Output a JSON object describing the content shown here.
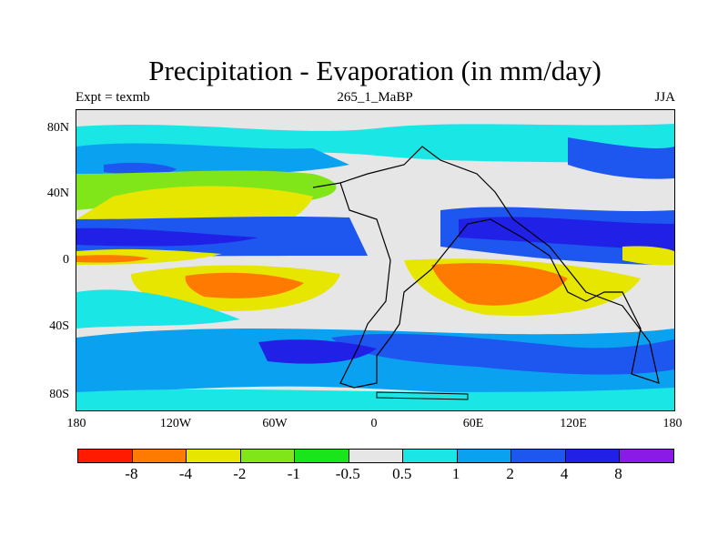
{
  "title": "Precipitation - Evaporation (in mm/day)",
  "subtitle_left": "Expt = texmb",
  "subtitle_center": "265_1_MaBP",
  "subtitle_right": "JJA",
  "y_ticks": [
    "80N",
    "40N",
    "0",
    "40S",
    "80S"
  ],
  "x_ticks": [
    "180",
    "120W",
    "60W",
    "0",
    "60E",
    "120E",
    "180"
  ],
  "colorbar": {
    "colors": [
      "#ff1a00",
      "#ff7a00",
      "#e6e600",
      "#80e619",
      "#19e61a",
      "#e6e6e6",
      "#1ae6e6",
      "#0aa2f0",
      "#1e56f0",
      "#2020e6",
      "#8a1ae6"
    ],
    "labels": [
      "-8",
      "-4",
      "-2",
      "-1",
      "-0.5",
      "0.5",
      "1",
      "2",
      "4",
      "8"
    ]
  }
}
